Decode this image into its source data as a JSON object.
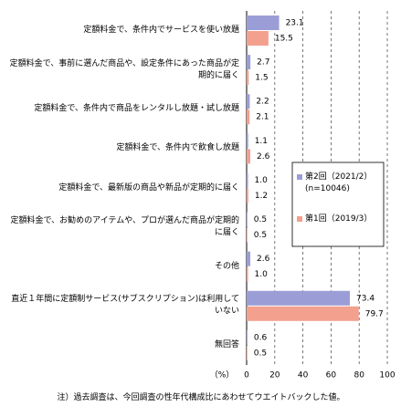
{
  "chart_data": {
    "type": "bar",
    "orientation": "horizontal",
    "categories": [
      "定額料金で、条件内でサービスを使い放題",
      "定額料金で、事前に選んだ商品や、設定条件にあった商品が定期的に届く",
      "定額料金で、条件内で商品をレンタルし放題・試し放題",
      "定額料金で、条件内で飲食し放題",
      "定額料金で、最新版の商品や新品が定期的に届く",
      "定額料金で、お勧めのアイテムや、プロが選んだ商品が定期的に届く",
      "その他",
      "直近１年間に定額制サービス(サブスクリプション)は利用していない",
      "無回答"
    ],
    "series": [
      {
        "name": "第2回（2021/2）(n=10046)",
        "color": "#9b9ed6",
        "values": [
          23.1,
          2.7,
          2.2,
          1.1,
          1.0,
          0.5,
          2.6,
          73.4,
          0.6
        ],
        "value_labels": [
          "23.1",
          "2.7",
          "2.2",
          "1.1",
          "1.0",
          "0.5",
          "2.6",
          "73.4",
          "0.6"
        ]
      },
      {
        "name": "第1回（2019/3）",
        "color": "#f4a08e",
        "values": [
          15.5,
          1.5,
          2.1,
          2.6,
          1.2,
          0.5,
          1.0,
          79.7,
          0.5
        ],
        "value_labels": [
          "15.5",
          "1.5",
          "2.1",
          "2.6",
          "1.2",
          "0.5",
          "1.0",
          "79.7",
          "0.5"
        ]
      }
    ],
    "xlim": [
      0,
      100
    ],
    "xticks": [
      0,
      20,
      40,
      60,
      80,
      100
    ],
    "x_axis_label": "（%）",
    "grid": true,
    "legend_position": "right",
    "footnote": "注）過去調査は、今回調査の性年代構成比にあわせてウエイトバックした値。"
  }
}
